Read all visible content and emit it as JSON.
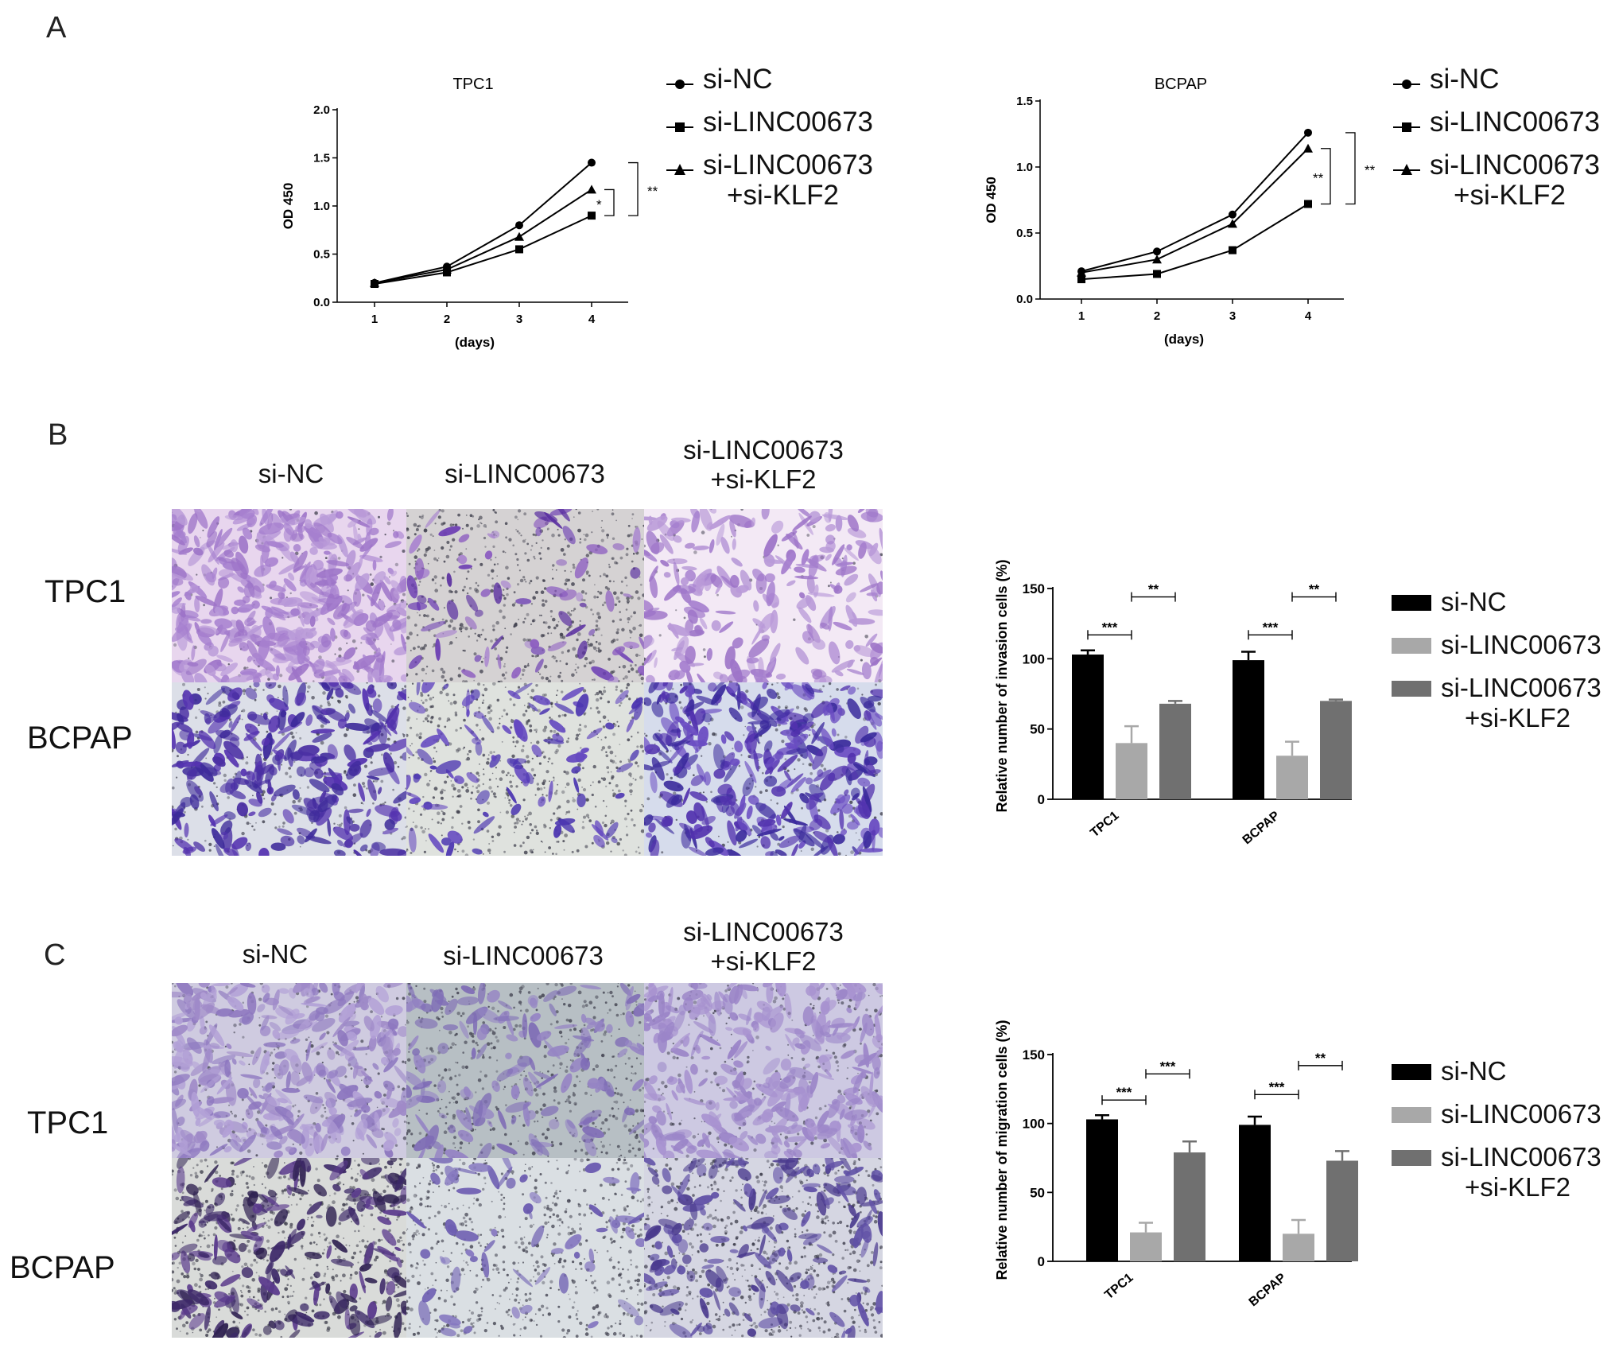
{
  "panels": {
    "A": {
      "letter": "A",
      "legend": [
        {
          "label": "si-NC",
          "marker": "circle"
        },
        {
          "label": "si-LINC00673",
          "marker": "square"
        },
        {
          "label": "si-LINC00673",
          "label2": "+si-KLF2",
          "marker": "triangle"
        }
      ]
    },
    "B": {
      "letter": "B",
      "columns": [
        "si-NC",
        "si-LINC00673",
        "si-LINC00673",
        "+si-KLF2"
      ],
      "rows": [
        "TPC1",
        "BCPAP"
      ]
    },
    "C": {
      "letter": "C",
      "columns": [
        "si-NC",
        "si-LINC00673",
        "si-LINC00673",
        "+si-KLF2"
      ],
      "rows": [
        "TPC1",
        "BCPAP"
      ]
    }
  },
  "bar_legend": [
    "si-NC",
    "si-LINC00673",
    "si-LINC00673",
    "+si-KLF2"
  ],
  "colors": {
    "si_nc": "#000000",
    "si_linc": "#a8a8a8",
    "si_klf2": "#707070",
    "stain_dark": "#5a2fa0",
    "stain_light": "#a680cf"
  },
  "chart_data": [
    {
      "id": "tpc1_growth",
      "type": "line",
      "title": "TPC1",
      "xlabel": "(days)",
      "ylabel": "OD 450",
      "x": [
        1,
        2,
        3,
        4
      ],
      "xticks": [
        "1",
        "2",
        "3",
        "4"
      ],
      "yticks": [
        "0.0",
        "0.5",
        "1.0",
        "1.5",
        "2.0"
      ],
      "ylim": [
        0,
        2.0
      ],
      "series": [
        {
          "name": "si-NC",
          "values": [
            0.2,
            0.37,
            0.8,
            1.45
          ]
        },
        {
          "name": "si-LINC00673",
          "values": [
            0.19,
            0.31,
            0.55,
            0.9
          ]
        },
        {
          "name": "si-LINC00673 +si-KLF2",
          "values": [
            0.2,
            0.34,
            0.68,
            1.17
          ]
        }
      ],
      "significance": [
        {
          "from": "si-LINC00673 +si-KLF2",
          "to": "si-LINC00673",
          "label": "*"
        },
        {
          "from": "si-NC",
          "to": "si-LINC00673",
          "label": "**"
        }
      ]
    },
    {
      "id": "bcpap_growth",
      "type": "line",
      "title": "BCPAP",
      "xlabel": "(days)",
      "ylabel": "OD 450",
      "x": [
        1,
        2,
        3,
        4
      ],
      "xticks": [
        "1",
        "2",
        "3",
        "4"
      ],
      "yticks": [
        "0.0",
        "0.5",
        "1.0",
        "1.5"
      ],
      "ylim": [
        0,
        1.5
      ],
      "series": [
        {
          "name": "si-NC",
          "values": [
            0.21,
            0.36,
            0.64,
            1.26
          ]
        },
        {
          "name": "si-LINC00673",
          "values": [
            0.15,
            0.19,
            0.37,
            0.72
          ]
        },
        {
          "name": "si-LINC00673 +si-KLF2",
          "values": [
            0.2,
            0.3,
            0.57,
            1.14
          ]
        }
      ],
      "significance": [
        {
          "from": "si-LINC00673 +si-KLF2",
          "to": "si-LINC00673",
          "label": "**"
        },
        {
          "from": "si-NC",
          "to": "si-LINC00673",
          "label": "**"
        }
      ]
    },
    {
      "id": "invasion",
      "type": "bar",
      "ylabel": "Relative number of invasion cells (%)",
      "categories": [
        "TPC1",
        "BCPAP"
      ],
      "yticks": [
        "0",
        "50",
        "100",
        "150"
      ],
      "ylim": [
        0,
        150
      ],
      "series": [
        {
          "name": "si-NC",
          "values": [
            103,
            99
          ],
          "errors": [
            3,
            6
          ]
        },
        {
          "name": "si-LINC00673",
          "values": [
            40,
            31
          ],
          "errors": [
            12,
            10
          ]
        },
        {
          "name": "si-LINC00673 +si-KLF2",
          "values": [
            68,
            70
          ],
          "errors": [
            2,
            1
          ]
        }
      ],
      "significance": [
        {
          "category": "TPC1",
          "from": 0,
          "to": 1,
          "label": "***",
          "level": 117
        },
        {
          "category": "TPC1",
          "from": 1,
          "to": 2,
          "label": "**",
          "level": 144
        },
        {
          "category": "BCPAP",
          "from": 0,
          "to": 1,
          "label": "***",
          "level": 117
        },
        {
          "category": "BCPAP",
          "from": 1,
          "to": 2,
          "label": "**",
          "level": 144
        }
      ]
    },
    {
      "id": "migration",
      "type": "bar",
      "ylabel": "Relative number of migration cells (%)",
      "categories": [
        "TPC1",
        "BCPAP"
      ],
      "yticks": [
        "0",
        "50",
        "100",
        "150"
      ],
      "ylim": [
        0,
        150
      ],
      "series": [
        {
          "name": "si-NC",
          "values": [
            103,
            99
          ],
          "errors": [
            3,
            6
          ]
        },
        {
          "name": "si-LINC00673",
          "values": [
            21,
            20
          ],
          "errors": [
            7,
            10
          ]
        },
        {
          "name": "si-LINC00673 +si-KLF2",
          "values": [
            79,
            73
          ],
          "errors": [
            8,
            7
          ]
        }
      ],
      "significance": [
        {
          "category": "TPC1",
          "from": 0,
          "to": 1,
          "label": "***",
          "level": 117
        },
        {
          "category": "TPC1",
          "from": 1,
          "to": 2,
          "label": "***",
          "level": 136
        },
        {
          "category": "BCPAP",
          "from": 0,
          "to": 1,
          "label": "***",
          "level": 121
        },
        {
          "category": "BCPAP",
          "from": 1,
          "to": 2,
          "label": "**",
          "level": 142
        }
      ]
    }
  ]
}
